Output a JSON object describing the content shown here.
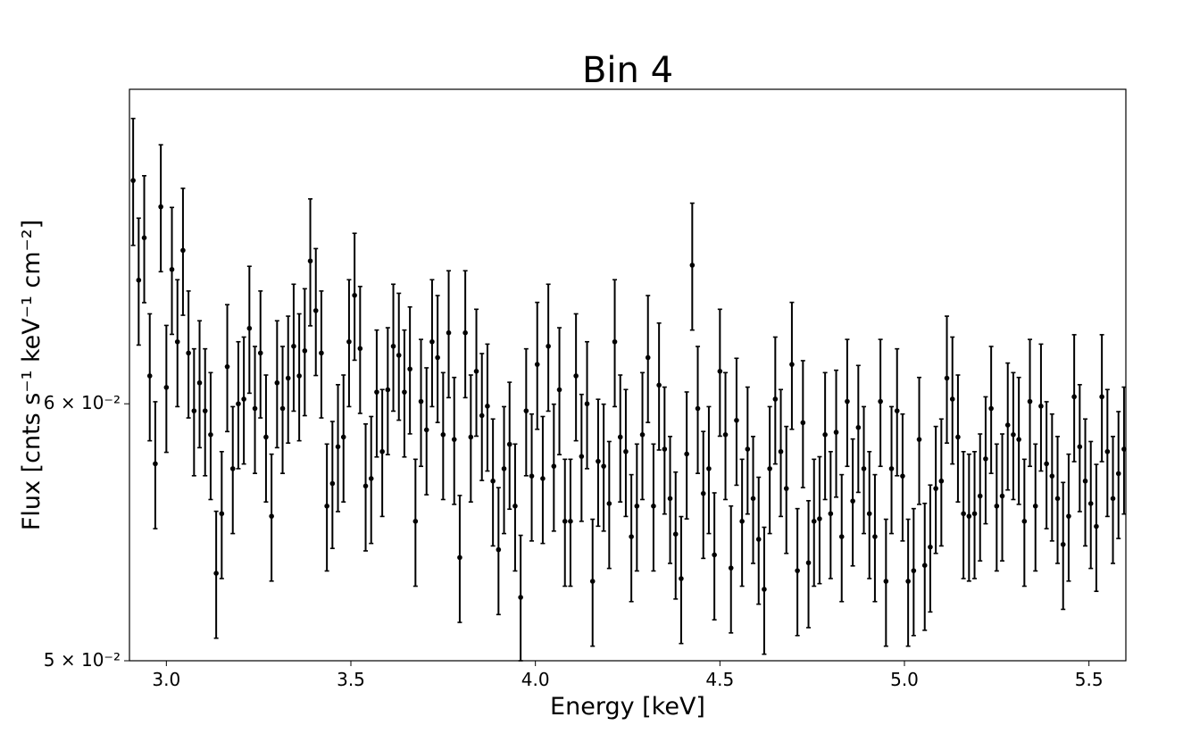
{
  "chart_data": {
    "type": "scatter",
    "title": "Bin 4",
    "xlabel": "Energy [keV]",
    "ylabel": "Flux [cnts s⁻¹ keV⁻¹ cm⁻²]",
    "xlim": [
      2.9,
      5.6
    ],
    "ylim": [
      0.05,
      0.075
    ],
    "yscale": "log",
    "grid": false,
    "x_ticks": [
      {
        "value": 3.0,
        "label": "3.0"
      },
      {
        "value": 3.5,
        "label": "3.5"
      },
      {
        "value": 4.0,
        "label": "4.0"
      },
      {
        "value": 4.5,
        "label": "4.5"
      },
      {
        "value": 5.0,
        "label": "5.0"
      },
      {
        "value": 5.5,
        "label": "5.5"
      }
    ],
    "y_ticks": [
      {
        "value": 0.05,
        "label": "5 × 10⁻²"
      },
      {
        "value": 0.06,
        "label": "6 × 10⁻²"
      }
    ],
    "series": [
      {
        "marker": "dot",
        "color": "#000000",
        "error_frac": 0.045,
        "x": [
          2.91,
          2.925,
          2.94,
          2.955,
          2.97,
          2.985,
          3.0,
          3.015,
          3.03,
          3.045,
          3.06,
          3.075,
          3.09,
          3.105,
          3.12,
          3.135,
          3.15,
          3.165,
          3.18,
          3.195,
          3.21,
          3.225,
          3.24,
          3.255,
          3.27,
          3.285,
          3.3,
          3.315,
          3.33,
          3.345,
          3.36,
          3.375,
          3.39,
          3.405,
          3.42,
          3.435,
          3.45,
          3.465,
          3.48,
          3.495,
          3.51,
          3.525,
          3.54,
          3.555,
          3.57,
          3.585,
          3.6,
          3.615,
          3.63,
          3.645,
          3.66,
          3.675,
          3.69,
          3.705,
          3.72,
          3.735,
          3.75,
          3.765,
          3.78,
          3.795,
          3.81,
          3.825,
          3.84,
          3.855,
          3.87,
          3.885,
          3.9,
          3.915,
          3.93,
          3.945,
          3.96,
          3.975,
          3.99,
          4.005,
          4.02,
          4.035,
          4.05,
          4.065,
          4.08,
          4.095,
          4.11,
          4.125,
          4.14,
          4.155,
          4.17,
          4.185,
          4.2,
          4.215,
          4.23,
          4.245,
          4.26,
          4.275,
          4.29,
          4.305,
          4.32,
          4.335,
          4.35,
          4.365,
          4.38,
          4.395,
          4.41,
          4.425,
          4.44,
          4.455,
          4.47,
          4.485,
          4.5,
          4.515,
          4.53,
          4.545,
          4.56,
          4.575,
          4.59,
          4.605,
          4.62,
          4.635,
          4.65,
          4.665,
          4.68,
          4.695,
          4.71,
          4.725,
          4.74,
          4.755,
          4.77,
          4.785,
          4.8,
          4.815,
          4.83,
          4.845,
          4.86,
          4.875,
          4.89,
          4.905,
          4.92,
          4.935,
          4.95,
          4.965,
          4.98,
          4.995,
          5.01,
          5.025,
          5.04,
          5.055,
          5.07,
          5.085,
          5.1,
          5.115,
          5.13,
          5.145,
          5.16,
          5.175,
          5.19,
          5.205,
          5.22,
          5.235,
          5.25,
          5.265,
          5.28,
          5.295,
          5.31,
          5.325,
          5.34,
          5.355,
          5.37,
          5.385,
          5.4,
          5.415,
          5.43,
          5.445,
          5.46,
          5.475,
          5.49,
          5.505,
          5.52,
          5.535,
          5.55,
          5.565,
          5.58,
          5.595
        ],
        "y": [
          0.0703,
          0.0655,
          0.0675,
          0.0612,
          0.0575,
          0.069,
          0.0607,
          0.066,
          0.0627,
          0.0669,
          0.0622,
          0.0597,
          0.0609,
          0.0597,
          0.0587,
          0.0532,
          0.0555,
          0.0616,
          0.0573,
          0.06,
          0.0602,
          0.0633,
          0.0598,
          0.0622,
          0.0586,
          0.0554,
          0.0609,
          0.0598,
          0.0611,
          0.0625,
          0.0612,
          0.0623,
          0.0664,
          0.0641,
          0.0622,
          0.0558,
          0.0567,
          0.0582,
          0.0586,
          0.0627,
          0.0648,
          0.0624,
          0.0566,
          0.0569,
          0.0605,
          0.058,
          0.0606,
          0.0625,
          0.0621,
          0.0605,
          0.0615,
          0.0552,
          0.0601,
          0.0589,
          0.0627,
          0.062,
          0.0587,
          0.0631,
          0.0585,
          0.0538,
          0.0631,
          0.0586,
          0.0614,
          0.0595,
          0.0599,
          0.0568,
          0.0541,
          0.0573,
          0.0583,
          0.0558,
          0.0523,
          0.0597,
          0.057,
          0.0617,
          0.0569,
          0.0625,
          0.0574,
          0.0606,
          0.0552,
          0.0552,
          0.0612,
          0.0578,
          0.06,
          0.0529,
          0.0576,
          0.0574,
          0.0559,
          0.0627,
          0.0586,
          0.058,
          0.0546,
          0.0558,
          0.0587,
          0.062,
          0.0558,
          0.0608,
          0.0581,
          0.0561,
          0.0547,
          0.053,
          0.0579,
          0.0662,
          0.0598,
          0.0563,
          0.0573,
          0.0539,
          0.0614,
          0.0587,
          0.0534,
          0.0593,
          0.0552,
          0.0581,
          0.0561,
          0.0545,
          0.0526,
          0.0573,
          0.0602,
          0.058,
          0.0565,
          0.0617,
          0.0533,
          0.0592,
          0.0536,
          0.0552,
          0.0553,
          0.0587,
          0.0555,
          0.0588,
          0.0546,
          0.0601,
          0.056,
          0.059,
          0.0573,
          0.0555,
          0.0546,
          0.0601,
          0.0529,
          0.0573,
          0.0597,
          0.057,
          0.0529,
          0.0533,
          0.0585,
          0.0535,
          0.0542,
          0.0565,
          0.0568,
          0.0611,
          0.0602,
          0.0586,
          0.0555,
          0.0554,
          0.0555,
          0.0562,
          0.0577,
          0.0598,
          0.0558,
          0.0562,
          0.0591,
          0.0587,
          0.0585,
          0.0552,
          0.0601,
          0.0558,
          0.0599,
          0.0575,
          0.057,
          0.0561,
          0.0543,
          0.0554,
          0.0603,
          0.0582,
          0.0568,
          0.0559,
          0.055,
          0.0603,
          0.058,
          0.0561,
          0.0571,
          0.0581
        ]
      }
    ]
  }
}
